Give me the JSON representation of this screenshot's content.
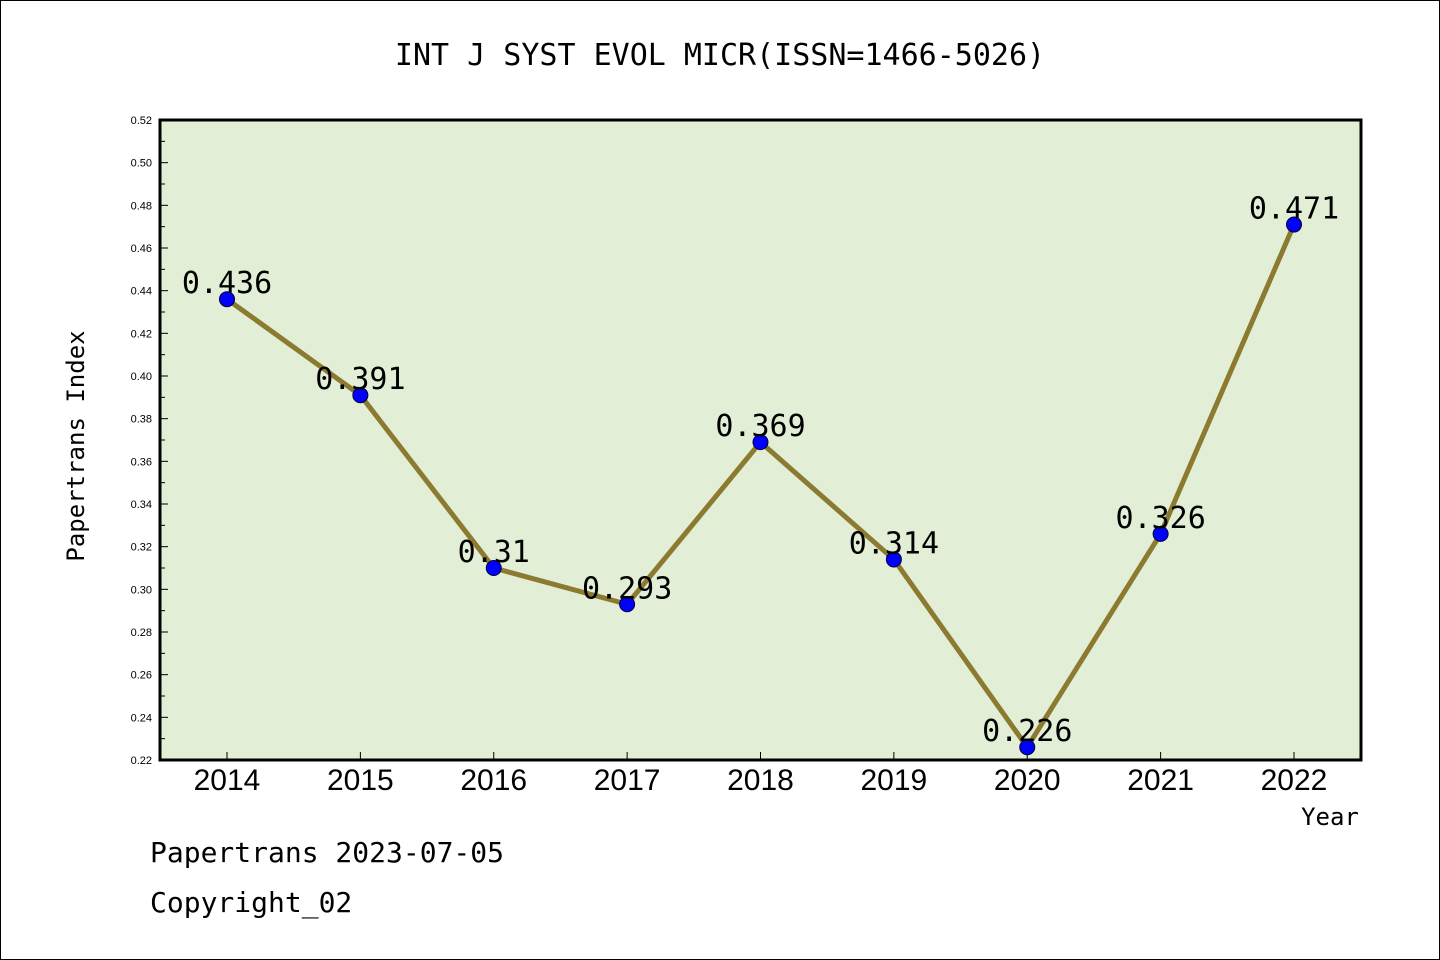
{
  "title": "INT J SYST EVOL MICR(ISSN=1466-5026)",
  "footer": {
    "line1": "Papertrans 2023-07-05",
    "line2": "Copyright_02"
  },
  "colors": {
    "plot_background": "#e2efd6",
    "line": "#8b7a30",
    "marker": "#0000ff"
  },
  "chart_data": {
    "type": "line",
    "title": "INT J SYST EVOL MICR(ISSN=1466-5026)",
    "xlabel": "Year",
    "ylabel": "Papertrans Index",
    "categories": [
      "2014",
      "2015",
      "2016",
      "2017",
      "2018",
      "2019",
      "2020",
      "2021",
      "2022"
    ],
    "series": [
      {
        "values": [
          0.436,
          0.391,
          0.31,
          0.293,
          0.369,
          0.314,
          0.226,
          0.326,
          0.471
        ],
        "labels": [
          "0.436",
          "0.391",
          "0.31",
          "0.293",
          "0.369",
          "0.314",
          "0.226",
          "0.326",
          "0.471"
        ]
      }
    ],
    "ylim": [
      0.22,
      0.52
    ],
    "yticks": [
      "0.22",
      "0.24",
      "0.26",
      "0.28",
      "0.30",
      "0.32",
      "0.34",
      "0.36",
      "0.38",
      "0.40",
      "0.42",
      "0.44",
      "0.46",
      "0.48",
      "0.50",
      "0.52"
    ],
    "grid": false,
    "legend": "none"
  }
}
